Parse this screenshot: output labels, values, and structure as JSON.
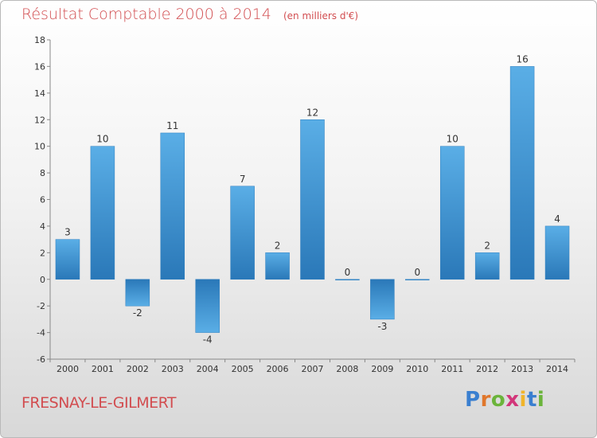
{
  "header": {
    "title": "Résultat Comptable 2000 à 2014",
    "subtitle": "(en milliers d'€)"
  },
  "footer": {
    "commune": "FRESNAY-LE-GILMERT",
    "logo_text": "Proxiti"
  },
  "colors": {
    "title": "#d24d50",
    "bar_light": "#5aaee6",
    "bar_dark": "#2a78b8"
  },
  "chart_data": {
    "type": "bar",
    "title": "Résultat Comptable 2000 à 2014",
    "subtitle": "(en milliers d'€)",
    "categories": [
      "2000",
      "2001",
      "2002",
      "2003",
      "2004",
      "2005",
      "2006",
      "2007",
      "2008",
      "2009",
      "2010",
      "2011",
      "2012",
      "2013",
      "2014"
    ],
    "values": [
      3,
      10,
      -2,
      11,
      -4,
      7,
      2,
      12,
      0,
      -3,
      0,
      10,
      2,
      16,
      4
    ],
    "ylim": [
      -6,
      18
    ],
    "yticks": [
      -6,
      -4,
      -2,
      0,
      2,
      4,
      6,
      8,
      10,
      12,
      14,
      16,
      18
    ],
    "xlabel": "",
    "ylabel": "",
    "grid": false,
    "legend": "none"
  }
}
